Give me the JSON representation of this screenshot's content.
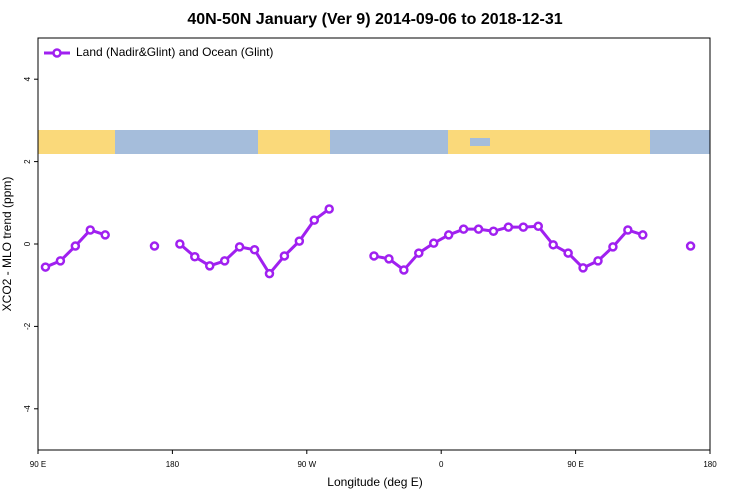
{
  "chart_data": {
    "type": "line",
    "title": "40N-50N January (Ver 9)   2014-09-06 to 2018-12-31",
    "x_label": "Longitude (deg E)",
    "y_label": "XCO2 - MLO trend (ppm)",
    "xlim": [
      90,
      540
    ],
    "ylim": [
      -5,
      5
    ],
    "xticks": [
      {
        "value": 90,
        "label": "90 E"
      },
      {
        "value": 180,
        "label": "180"
      },
      {
        "value": 270,
        "label": "90 W"
      },
      {
        "value": 360,
        "label": "0"
      },
      {
        "value": 450,
        "label": "90 E"
      },
      {
        "value": 540,
        "label": "180"
      }
    ],
    "yticks": [
      -4,
      -2,
      0,
      2,
      4
    ],
    "legend": "top-left",
    "x": [
      95,
      105,
      115,
      125,
      135,
      150,
      168,
      175,
      185,
      195,
      205,
      215,
      225,
      235,
      245,
      255,
      265,
      275,
      285,
      300,
      315,
      325,
      335,
      345,
      355,
      365,
      375,
      385,
      395,
      405,
      415,
      425,
      435,
      445,
      455,
      465,
      475,
      485,
      495,
      510,
      527
    ],
    "series": [
      {
        "name": "Land (Nadir&Glint) and Ocean (Glint)",
        "color": "#a020f0",
        "values": [
          -0.56,
          -0.41,
          -0.05,
          0.34,
          0.22,
          null,
          -0.05,
          null,
          0,
          -0.31,
          -0.53,
          -0.41,
          -0.07,
          -0.14,
          -0.72,
          -0.29,
          0.07,
          0.58,
          0.85,
          null,
          -0.29,
          -0.36,
          -0.63,
          -0.22,
          0.02,
          0.22,
          0.36,
          0.36,
          0.31,
          0.41,
          0.41,
          0.43,
          -0.02,
          -0.22,
          -0.58,
          -0.41,
          -0.07,
          0.34,
          0.22,
          null,
          -0.05
        ]
      }
    ]
  }
}
